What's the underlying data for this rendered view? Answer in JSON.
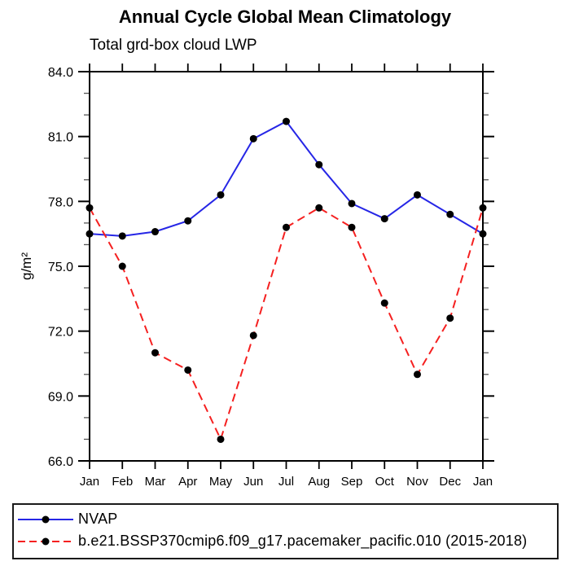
{
  "chart_data": {
    "type": "line",
    "title": "Annual Cycle Global Mean Climatology",
    "subtitle": "Total grd-box cloud LWP",
    "ylabel": "g/m²",
    "xlabel": "",
    "categories": [
      "Jan",
      "Feb",
      "Mar",
      "Apr",
      "May",
      "Jun",
      "Jul",
      "Aug",
      "Sep",
      "Oct",
      "Nov",
      "Dec",
      "Jan"
    ],
    "series": [
      {
        "name": "NVAP",
        "color": "#2626e6",
        "line_style": "solid",
        "marker": "filled-circle",
        "marker_color": "#000000",
        "values": [
          76.5,
          76.4,
          76.6,
          77.1,
          78.3,
          80.9,
          81.7,
          79.7,
          77.9,
          77.2,
          78.3,
          77.4,
          76.5
        ]
      },
      {
        "name": "b.e21.BSSP370cmip6.f09_g17.pacemaker_pacific.010 (2015-2018)",
        "color": "#f52020",
        "line_style": "dashed",
        "marker": "filled-circle",
        "marker_color": "#000000",
        "values": [
          77.7,
          75.0,
          71.0,
          70.2,
          67.0,
          71.8,
          76.8,
          77.7,
          76.8,
          73.3,
          70.0,
          72.6,
          77.7
        ]
      }
    ],
    "ylim": [
      66,
      84
    ],
    "ytick_major": [
      66,
      69,
      72,
      75,
      78,
      81,
      84
    ],
    "ytick_labels": [
      "66.0",
      "69.0",
      "72.0",
      "75.0",
      "78.0",
      "81.0",
      "84.0"
    ],
    "ytick_minor_step": 1,
    "grid": false,
    "legend_position": "bottom-box",
    "axis_color": "#000000",
    "background_color": "#ffffff"
  }
}
